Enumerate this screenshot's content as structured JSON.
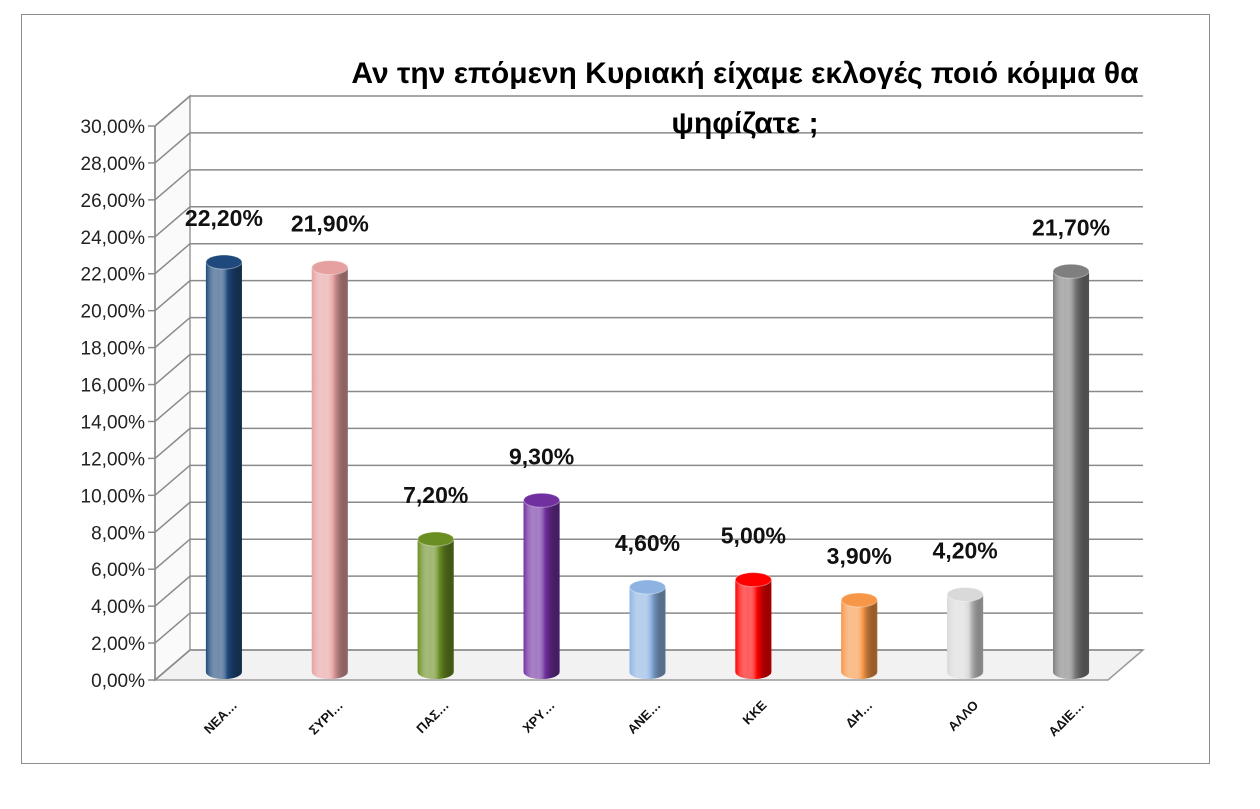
{
  "chart_data": {
    "type": "bar",
    "title_lines": [
      "Αν την επόμενη Κυριακή είχαμε εκλογές ποιό κόμμα θα",
      "ψηφίζατε ;"
    ],
    "categories": [
      "ΝΕΑ…",
      "ΣΥΡΙ…",
      "ΠΑΣ…",
      "ΧΡΥ…",
      "ΑΝΕ…",
      "ΚΚΕ",
      "ΔΗ…",
      "ΑΛΛΟ",
      "ΑΔΙΕ…"
    ],
    "values": [
      22.2,
      21.9,
      7.2,
      9.3,
      4.6,
      5.0,
      3.9,
      4.2,
      21.7
    ],
    "value_labels": [
      "22,20%",
      "21,90%",
      "7,20%",
      "9,30%",
      "4,60%",
      "5,00%",
      "3,90%",
      "4,20%",
      "21,70%"
    ],
    "colors": [
      "#1f497d",
      "#e6a0a0",
      "#6b8e23",
      "#7030a0",
      "#8db3e2",
      "#ff0000",
      "#f79646",
      "#d9d9d9",
      "#7f7f7f"
    ],
    "ytick_labels": [
      "0,00%",
      "2,00%",
      "4,00%",
      "6,00%",
      "8,00%",
      "10,00%",
      "12,00%",
      "14,00%",
      "16,00%",
      "18,00%",
      "20,00%",
      "22,00%",
      "24,00%",
      "26,00%",
      "28,00%",
      "30,00%"
    ],
    "ylim": [
      0,
      30
    ],
    "ystep": 2,
    "grid": true,
    "legend": "none",
    "style": "3d-cylinder"
  }
}
